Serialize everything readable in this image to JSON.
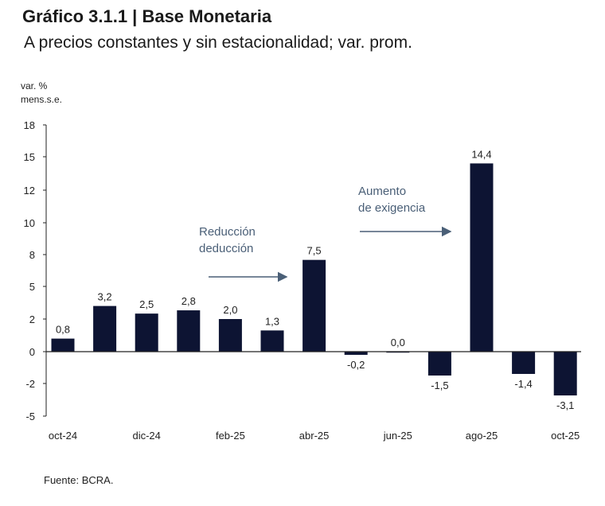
{
  "header": {
    "title": "Gráfico 3.1.1 | Base Monetaria",
    "subtitle": "A precios constantes y sin estacionalidad; var. prom."
  },
  "footer": {
    "source": "Fuente: BCRA."
  },
  "colors": {
    "bar": "#0d1433",
    "annotation": "#4a5f77",
    "axis": "#222222"
  },
  "chart_data": {
    "type": "bar",
    "title": "Gráfico 3.1.1 | Base Monetaria",
    "subtitle": "A precios constantes y sin estacionalidad; var. prom.",
    "ylabel_lines": [
      "var. %",
      "mens.s.e."
    ],
    "xlabel": "",
    "ylim": [
      -5,
      18
    ],
    "yticks": [
      -5,
      -2,
      0,
      2,
      5,
      8,
      10,
      12,
      15,
      18
    ],
    "categories": [
      "oct-24",
      "nov-24",
      "dic-24",
      "ene-25",
      "feb-25",
      "mar-25",
      "abr-25",
      "may-25",
      "jun-25",
      "jul-25",
      "ago-25",
      "sep-25",
      "oct-25"
    ],
    "xtick_labels": [
      "oct-24",
      "",
      "dic-24",
      "",
      "feb-25",
      "",
      "abr-25",
      "",
      "jun-25",
      "",
      "ago-25",
      "",
      "oct-25"
    ],
    "values": [
      0.8,
      3.2,
      2.5,
      2.8,
      2.0,
      1.3,
      7.5,
      -0.2,
      0.0,
      -1.5,
      14.4,
      -1.4,
      -3.1
    ],
    "value_labels": [
      "0,8",
      "3,2",
      "2,5",
      "2,8",
      "2,0",
      "1,3",
      "7,5",
      "-0,2",
      "0,0",
      "-1,5",
      "14,4",
      "-1,4",
      "-3,1"
    ],
    "annotations": [
      {
        "lines": [
          "Reducción",
          "deducción"
        ],
        "arrow_from_category": "ene-25",
        "arrow_to_category": "mar-25"
      },
      {
        "lines": [
          "Aumento",
          "de exigencia"
        ],
        "arrow_from_category": "jun-25",
        "arrow_to_category": "jul-25"
      }
    ],
    "grid": false
  }
}
